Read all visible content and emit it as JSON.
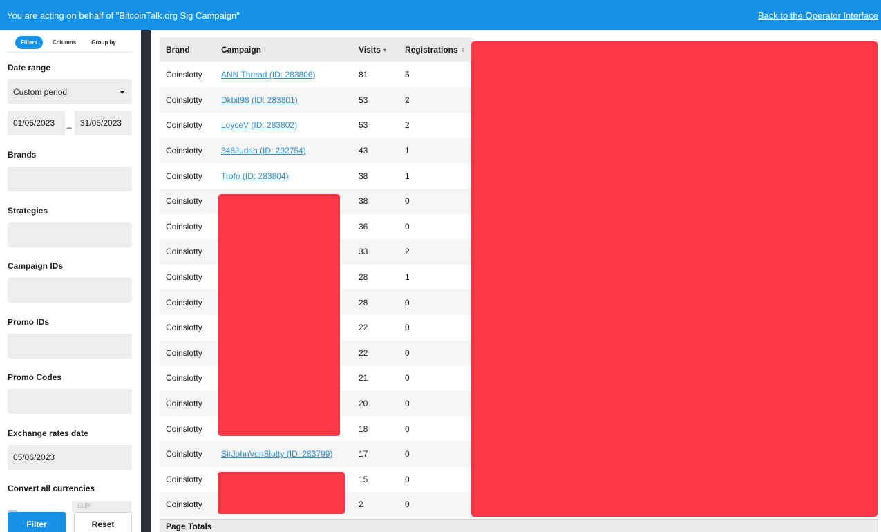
{
  "banner": {
    "acting_text": "You are acting on behalf of \"BitcoinTalk.org Sig Campaign\"",
    "back_link": "Back to the Operator Interface"
  },
  "sidebar": {
    "tabs": [
      "Filters",
      "Columns",
      "Group by"
    ],
    "date_range_label": "Date range",
    "date_range_value": "Custom period",
    "date_from": "01/05/2023",
    "date_separator": "–",
    "date_to": "31/05/2023",
    "brands_label": "Brands",
    "strategies_label": "Strategies",
    "campaign_ids_label": "Campaign IDs",
    "promo_ids_label": "Promo IDs",
    "promo_codes_label": "Promo Codes",
    "exchange_rates_label": "Exchange rates date",
    "exchange_rates_value": "05/06/2023",
    "convert_label": "Convert all currencies",
    "convert_value_partial": "EUR",
    "filter_button": "Filter",
    "reset_button": "Reset"
  },
  "table": {
    "headers": {
      "brand": "Brand",
      "campaign": "Campaign",
      "visits": "Visits",
      "registrations": "Registrations"
    },
    "rows": [
      {
        "brand": "Coinslotty",
        "campaign": "ANN Thread (ID: 283806)",
        "visits": "81",
        "registrations": "5"
      },
      {
        "brand": "Coinslotty",
        "campaign": "Dkbit98 (ID: 283801)",
        "visits": "53",
        "registrations": "2"
      },
      {
        "brand": "Coinslotty",
        "campaign": "LoyceV (ID: 283802)",
        "visits": "53",
        "registrations": "2"
      },
      {
        "brand": "Coinslotty",
        "campaign": "348Judah (ID: 292754)",
        "visits": "43",
        "registrations": "1"
      },
      {
        "brand": "Coinslotty",
        "campaign": "Trofo (ID: 283804)",
        "visits": "38",
        "registrations": "1"
      },
      {
        "brand": "Coinslotty",
        "campaign": "",
        "visits": "38",
        "registrations": "0"
      },
      {
        "brand": "Coinslotty",
        "campaign": "",
        "visits": "36",
        "registrations": "0"
      },
      {
        "brand": "Coinslotty",
        "campaign": "",
        "visits": "33",
        "registrations": "2"
      },
      {
        "brand": "Coinslotty",
        "campaign": "",
        "visits": "28",
        "registrations": "1"
      },
      {
        "brand": "Coinslotty",
        "campaign": "",
        "visits": "28",
        "registrations": "0"
      },
      {
        "brand": "Coinslotty",
        "campaign": "",
        "visits": "22",
        "registrations": "0"
      },
      {
        "brand": "Coinslotty",
        "campaign": "",
        "visits": "22",
        "registrations": "0"
      },
      {
        "brand": "Coinslotty",
        "campaign": "",
        "visits": "21",
        "registrations": "0"
      },
      {
        "brand": "Coinslotty",
        "campaign": "",
        "visits": "20",
        "registrations": "0"
      },
      {
        "brand": "Coinslotty",
        "campaign": "",
        "visits": "18",
        "registrations": "0"
      },
      {
        "brand": "Coinslotty",
        "campaign": "SirJohnVonSlotty (ID: 283799)",
        "visits": "17",
        "registrations": "0"
      },
      {
        "brand": "Coinslotty",
        "campaign": "",
        "visits": "15",
        "registrations": "0"
      },
      {
        "brand": "Coinslotty",
        "campaign": "",
        "visits": "2",
        "registrations": "0"
      }
    ],
    "totals_label": "Page Totals"
  },
  "icons": {
    "visits_sort": "sort-desc-icon",
    "registrations_sort": "sort-neutral-icon",
    "date_range_caret": "chevron-down-icon"
  },
  "colors": {
    "accent": "#1592e8",
    "link": "#2b8fd6",
    "redaction": "#fd3644",
    "divider": "#2b2f3a"
  }
}
